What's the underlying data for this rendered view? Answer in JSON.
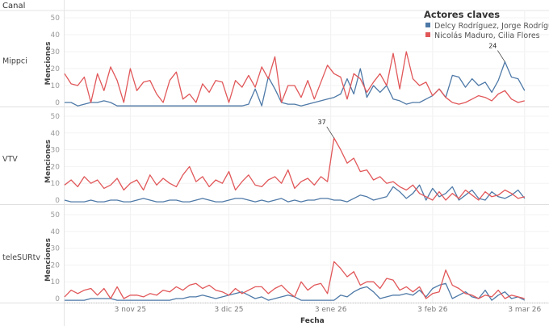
{
  "header": {
    "column_label": "Canal"
  },
  "legend": {
    "title": "Actores claves"
  },
  "chart_data": {
    "type": "line",
    "xlabel": "Fecha",
    "ylabel": "Menciones",
    "x_start": "2025-10-14",
    "x_step_days": 2,
    "x_ticks": [
      {
        "day": 20,
        "label": "3 nov 25"
      },
      {
        "day": 50,
        "label": "3 dic 25"
      },
      {
        "day": 81,
        "label": "3 ene 26"
      },
      {
        "day": 112,
        "label": "3 feb 26"
      },
      {
        "day": 140,
        "label": "3 mar 26"
      }
    ],
    "y_ticks": [
      0,
      10,
      20,
      30,
      40,
      50
    ],
    "ylim": [
      -2,
      55
    ],
    "legend_placement": "top-right",
    "series_meta": [
      {
        "name": "Delcy Rodríguez, Jorge Rodríguez",
        "color": "#4e79a7"
      },
      {
        "name": "Nicolás Maduro, Cilia Flores",
        "color": "#e15759"
      }
    ],
    "panels": [
      {
        "channel": "Mippci",
        "annotation": {
          "text": "24",
          "series": 0,
          "index": 67
        },
        "series": [
          [
            0,
            0,
            -2,
            -1,
            0,
            0,
            1,
            0,
            -2,
            -2,
            -2,
            -2,
            -2,
            -2,
            -2,
            -2,
            -2,
            -2,
            -2,
            -2,
            -2,
            -2,
            -2,
            -2,
            -2,
            -2,
            -2,
            -2,
            -1,
            8,
            -2,
            15,
            8,
            0,
            -1,
            -1,
            -2,
            -1,
            0,
            1,
            2,
            3,
            5,
            14,
            5,
            20,
            3,
            10,
            6,
            10,
            2,
            1,
            -1,
            0,
            0,
            2,
            4,
            8,
            3,
            16,
            15,
            9,
            14,
            10,
            12,
            6,
            13,
            24,
            15,
            14,
            7
          ],
          [
            17,
            11,
            10,
            15,
            0,
            17,
            7,
            21,
            13,
            0,
            20,
            7,
            12,
            13,
            5,
            0,
            13,
            18,
            2,
            5,
            0,
            11,
            6,
            13,
            12,
            0,
            13,
            9,
            16,
            9,
            21,
            14,
            27,
            0,
            10,
            10,
            3,
            13,
            2,
            12,
            22,
            17,
            15,
            2,
            17,
            14,
            6,
            12,
            17,
            10,
            29,
            8,
            30,
            14,
            10,
            12,
            4,
            8,
            3,
            0,
            -1,
            0,
            2,
            4,
            3,
            1,
            5,
            7,
            2,
            0,
            1
          ]
        ]
      },
      {
        "channel": "VTV",
        "annotation": {
          "text": "37",
          "series": 1,
          "index": 41
        },
        "series": [
          [
            0,
            -1,
            -1,
            -1,
            0,
            -1,
            -1,
            0,
            0,
            -1,
            -1,
            0,
            1,
            0,
            -1,
            -1,
            0,
            0,
            -1,
            -1,
            0,
            1,
            0,
            -1,
            -1,
            0,
            1,
            1,
            0,
            -1,
            0,
            -1,
            0,
            1,
            -1,
            0,
            -1,
            0,
            0,
            1,
            1,
            0,
            0,
            -1,
            1,
            3,
            2,
            0,
            1,
            2,
            8,
            5,
            1,
            4,
            9,
            0,
            7,
            2,
            4,
            8,
            0,
            3,
            6,
            1,
            0,
            5,
            2,
            1,
            3,
            6,
            1
          ],
          [
            9,
            12,
            8,
            14,
            10,
            12,
            7,
            9,
            13,
            6,
            10,
            12,
            6,
            15,
            9,
            13,
            10,
            8,
            15,
            20,
            11,
            14,
            8,
            12,
            10,
            17,
            6,
            11,
            15,
            9,
            8,
            12,
            14,
            10,
            18,
            7,
            11,
            13,
            9,
            14,
            11,
            37,
            30,
            22,
            25,
            17,
            18,
            12,
            14,
            10,
            11,
            8,
            6,
            9,
            4,
            2,
            0,
            5,
            0,
            4,
            1,
            6,
            3,
            0,
            5,
            2,
            3,
            6,
            4,
            1,
            2
          ]
        ]
      },
      {
        "channel": "teleSURtv",
        "series": [
          [
            -1,
            -1,
            -1,
            -1,
            0,
            0,
            0,
            0,
            -1,
            -1,
            -1,
            -1,
            -1,
            -1,
            -1,
            -1,
            -1,
            0,
            0,
            1,
            1,
            2,
            1,
            0,
            1,
            2,
            3,
            4,
            2,
            0,
            1,
            -1,
            0,
            1,
            2,
            1,
            -1,
            -1,
            -1,
            -1,
            -1,
            -1,
            2,
            1,
            4,
            6,
            7,
            4,
            0,
            1,
            2,
            2,
            3,
            2,
            5,
            1,
            6,
            8,
            9,
            0,
            2,
            4,
            1,
            0,
            5,
            -1,
            2,
            4,
            0,
            1,
            -1
          ],
          [
            1,
            5,
            3,
            5,
            6,
            2,
            6,
            0,
            7,
            0,
            2,
            2,
            1,
            3,
            2,
            5,
            4,
            7,
            5,
            8,
            9,
            6,
            8,
            5,
            4,
            2,
            6,
            3,
            5,
            7,
            7,
            3,
            6,
            8,
            4,
            1,
            10,
            5,
            8,
            9,
            3,
            22,
            18,
            13,
            16,
            8,
            10,
            10,
            6,
            12,
            11,
            5,
            7,
            4,
            7,
            0,
            3,
            4,
            17,
            8,
            6,
            3,
            2,
            0,
            2,
            1,
            5,
            0,
            2,
            1,
            0
          ]
        ]
      }
    ]
  }
}
